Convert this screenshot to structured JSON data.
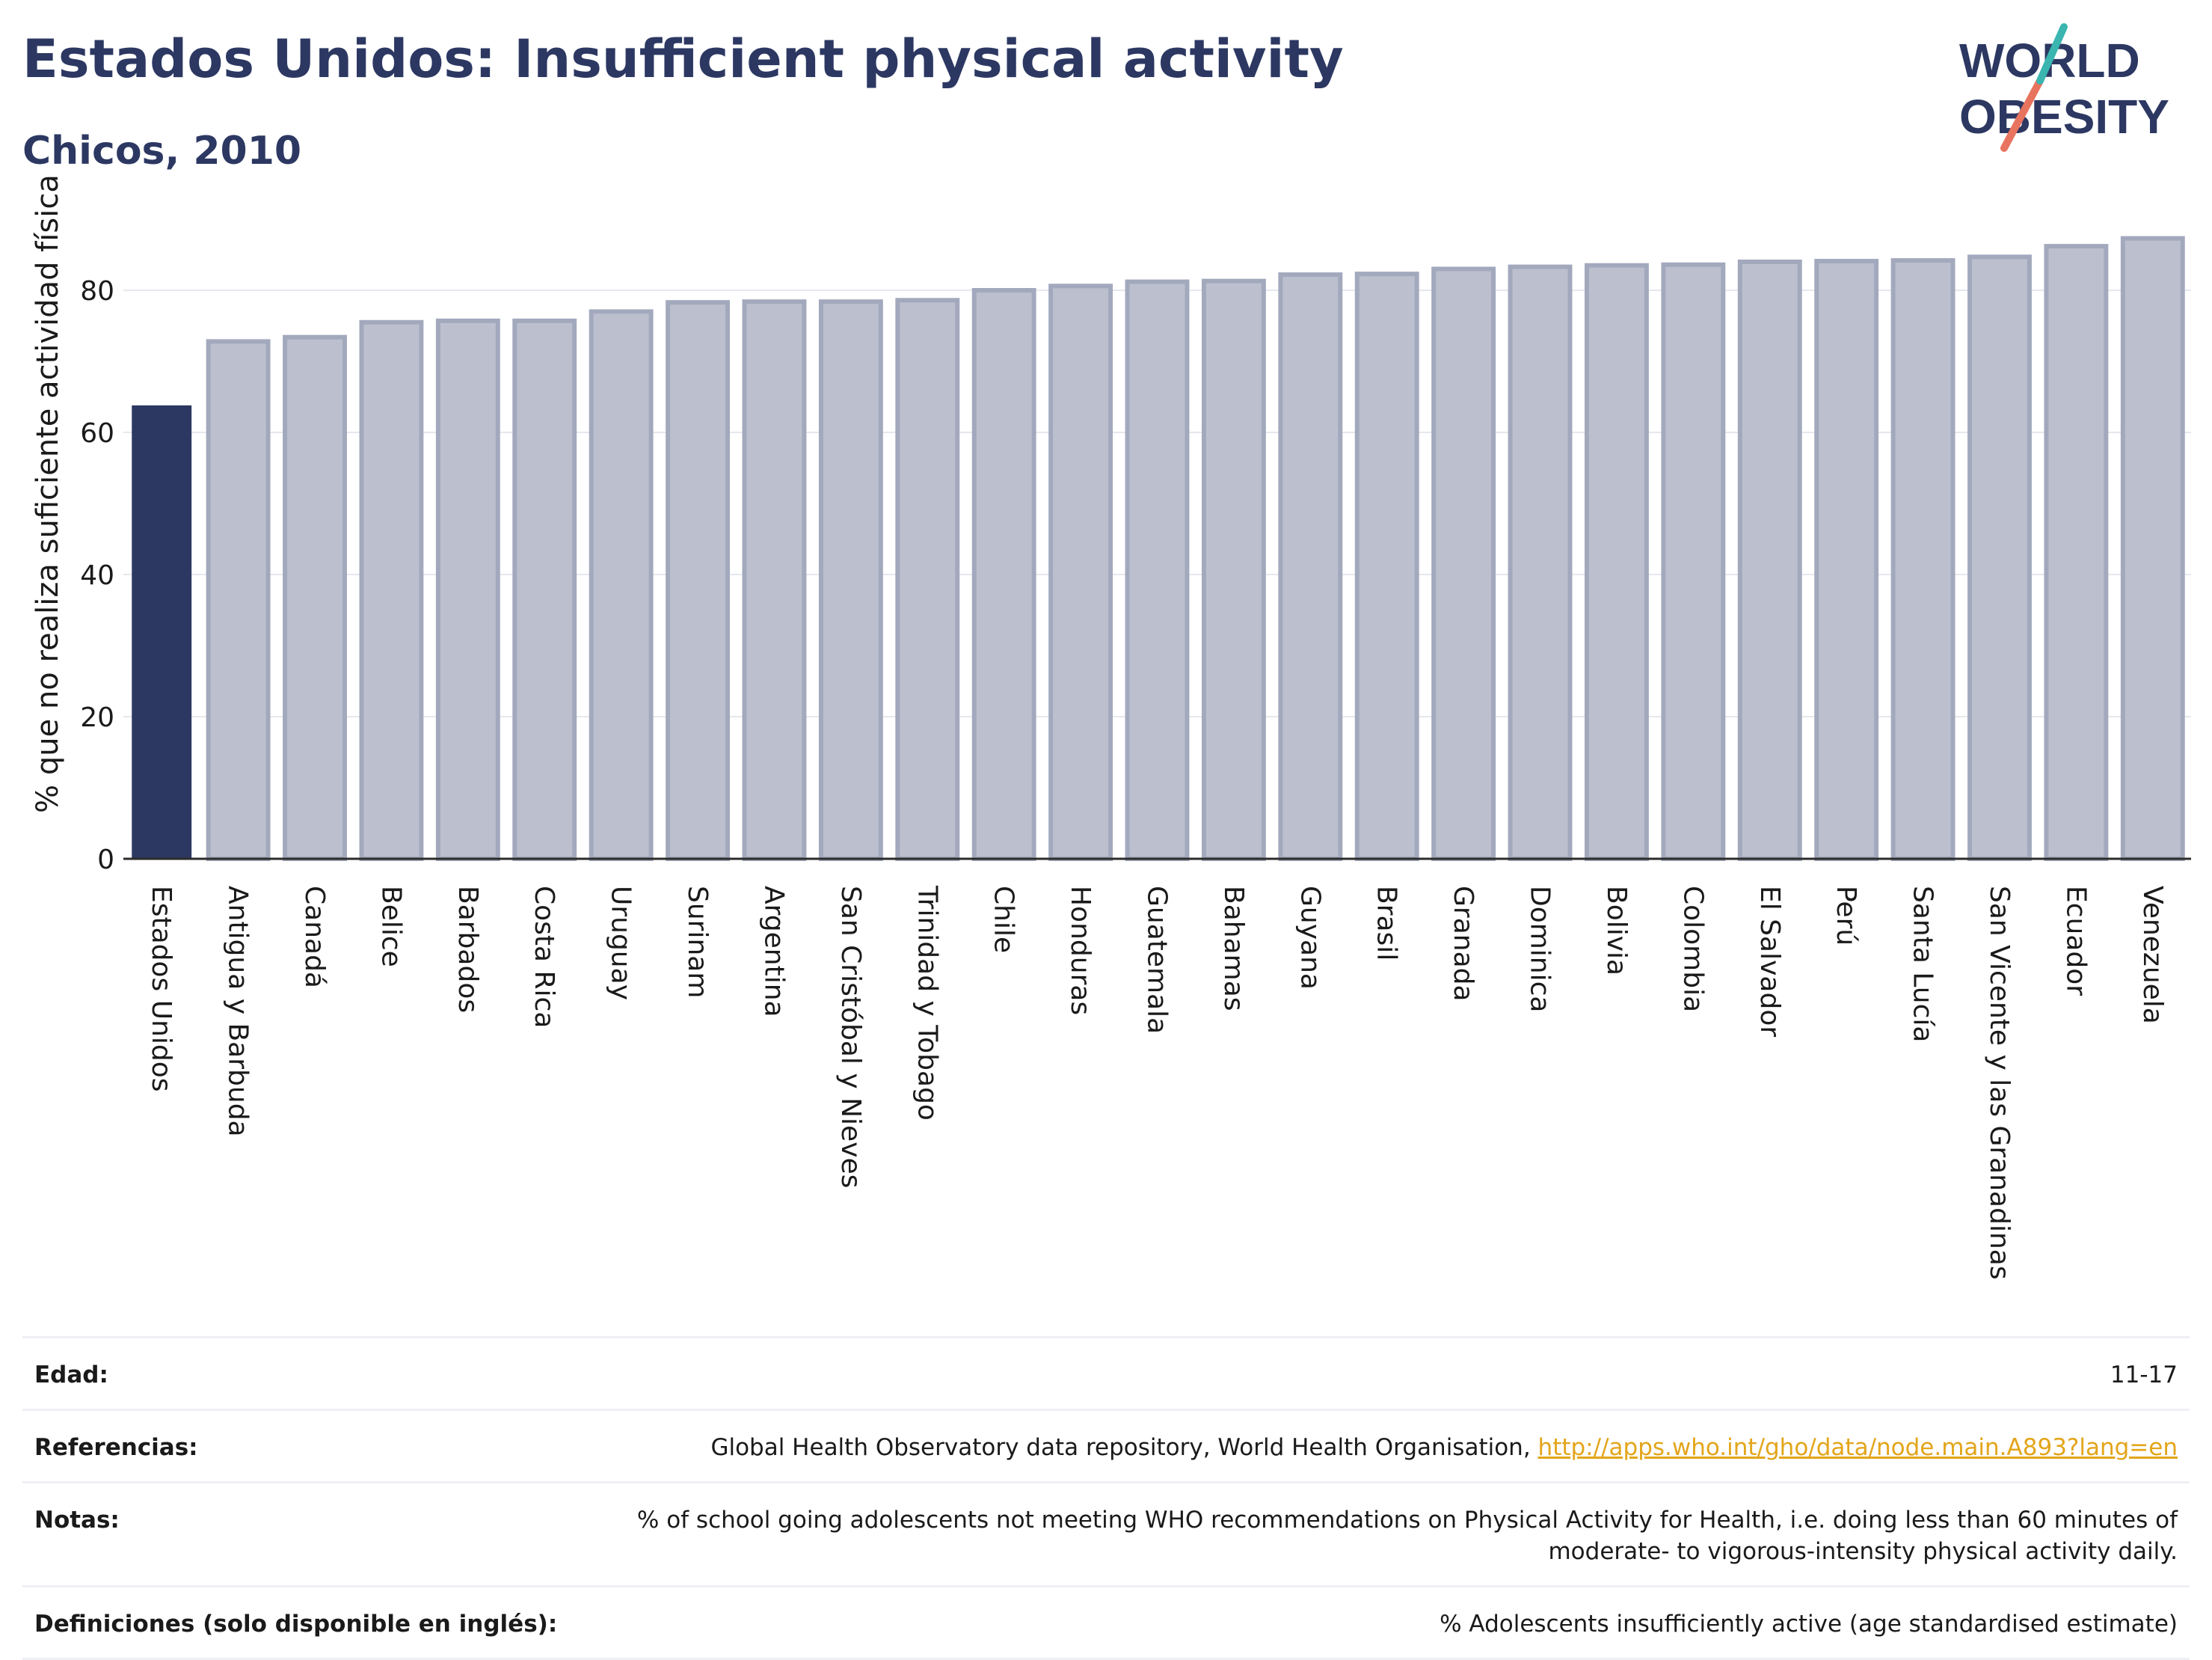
{
  "header": {
    "title": "Estados Unidos: Insufficient physical activity",
    "subtitle": "Chicos, 2010"
  },
  "logo": {
    "line1": "WORLD",
    "line2": "OBESITY"
  },
  "colors": {
    "highlight_bar": "#2c3862",
    "other_bars": "#bcc0ce",
    "other_bars_border": "#a3a9bd",
    "accent_teal": "#3ab5b0",
    "accent_coral": "#e8735f"
  },
  "chart_data": {
    "type": "bar",
    "ylabel": "% que no realiza suficiente actividad física",
    "xlabel": "",
    "ylim": [
      0,
      90
    ],
    "yticks": [
      0,
      20,
      40,
      60,
      80
    ],
    "grid": true,
    "highlight": "Estados Unidos",
    "categories": [
      "Estados Unidos",
      "Antigua y Barbuda",
      "Canadá",
      "Belice",
      "Barbados",
      "Costa Rica",
      "Uruguay",
      "Surinam",
      "Argentina",
      "San Cristóbal y Nieves",
      "Trinidad y Tobago",
      "Chile",
      "Honduras",
      "Guatemala",
      "Bahamas",
      "Guyana",
      "Brasil",
      "Granada",
      "Dominica",
      "Bolivia",
      "Colombia",
      "El Salvador",
      "Perú",
      "Santa Lucía",
      "San Vicente y las Granadinas",
      "Ecuador",
      "Venezuela"
    ],
    "values": [
      63.8,
      72.8,
      73.4,
      75.5,
      75.7,
      75.7,
      77.0,
      78.3,
      78.4,
      78.4,
      78.6,
      80.0,
      80.6,
      81.2,
      81.3,
      82.2,
      82.3,
      83.0,
      83.3,
      83.5,
      83.6,
      84.0,
      84.1,
      84.2,
      84.7,
      86.2,
      87.3
    ]
  },
  "meta": {
    "age_label": "Edad:",
    "age_value": "11-17",
    "references_label": "Referencias:",
    "references_text": "Global Health Observatory data repository, World Health Organisation, ",
    "references_link": "http://apps.who.int/gho/data/node.main.A893?lang=en",
    "notes_label": "Notas:",
    "notes_text": "% of school going adolescents not meeting WHO recommendations on Physical Activity for Health, i.e. doing less than 60 minutes of moderate- to vigorous-intensity physical activity daily.",
    "definitions_label": "Definiciones (solo disponible en inglés):",
    "definitions_text": "% Adolescents insufficiently active (age standardised estimate)"
  }
}
